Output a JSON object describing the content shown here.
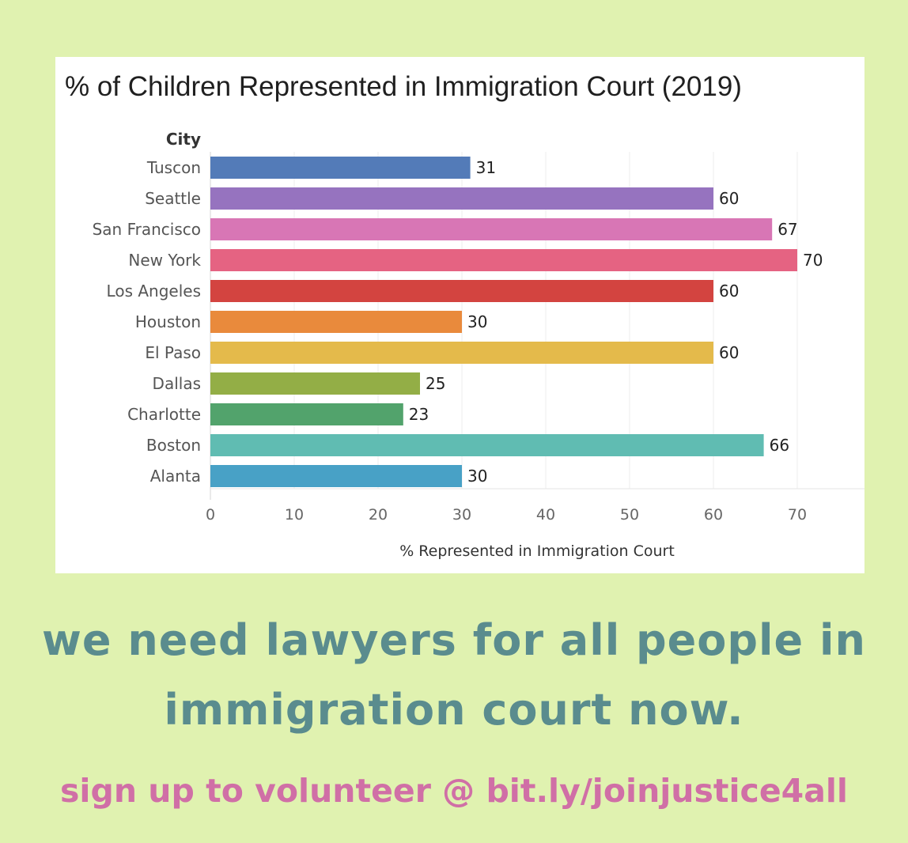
{
  "chart_data": {
    "type": "bar",
    "orientation": "horizontal",
    "title": "% of Children Represented in Immigration Court (2019)",
    "category_header": "City",
    "xlabel": "% Represented in Immigration Court",
    "xlim": [
      0,
      77
    ],
    "xticks": [
      0,
      10,
      20,
      30,
      40,
      50,
      60,
      70
    ],
    "grid": true,
    "categories": [
      "Tuscon",
      "Seattle",
      "San Francisco",
      "New York",
      "Los Angeles",
      "Houston",
      "El Paso",
      "Dallas",
      "Charlotte",
      "Boston",
      "Alanta"
    ],
    "values": [
      31,
      60,
      67,
      70,
      60,
      30,
      60,
      25,
      23,
      66,
      30
    ],
    "colors": [
      "#537bb8",
      "#9673bf",
      "#d876b5",
      "#e56382",
      "#d34440",
      "#e98a3c",
      "#e4ba4b",
      "#93ae46",
      "#52a36c",
      "#60bcb2",
      "#48a1c6"
    ]
  },
  "message": {
    "line1": "we need lawyers for all people in",
    "line2": "immigration court now."
  },
  "cta": "sign up to volunteer @ bit.ly/joinjustice4all"
}
